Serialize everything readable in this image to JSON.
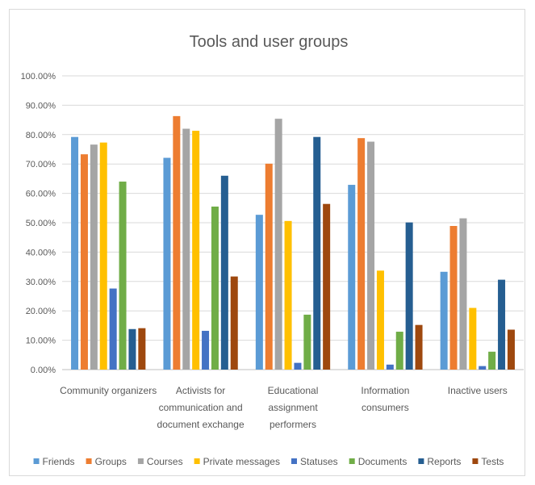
{
  "chart_data": {
    "type": "bar",
    "title": "Tools and user groups",
    "xlabel": "",
    "ylabel": "",
    "ylim": [
      0,
      100
    ],
    "y_ticks": [
      "0.00%",
      "10.00%",
      "20.00%",
      "30.00%",
      "40.00%",
      "50.00%",
      "60.00%",
      "70.00%",
      "80.00%",
      "90.00%",
      "100.00%"
    ],
    "grid": true,
    "legend_position": "bottom",
    "categories": [
      [
        "Community organizers"
      ],
      [
        "Activists for",
        "communication and",
        "document exchange"
      ],
      [
        "Educational",
        "assignment",
        "performers"
      ],
      [
        "Information",
        "consumers"
      ],
      [
        "Inactive users"
      ]
    ],
    "series": [
      {
        "name": "Friends",
        "color": "#5b9bd5",
        "values": [
          79.2,
          72.1,
          52.7,
          62.9,
          33.3
        ]
      },
      {
        "name": "Groups",
        "color": "#ed7d31",
        "values": [
          73.3,
          86.3,
          70.1,
          78.8,
          48.9
        ]
      },
      {
        "name": "Courses",
        "color": "#a5a5a5",
        "values": [
          76.6,
          82.0,
          85.4,
          77.6,
          51.5
        ]
      },
      {
        "name": "Private messages",
        "color": "#ffc000",
        "values": [
          77.3,
          81.3,
          50.6,
          33.7,
          21.0
        ]
      },
      {
        "name": "Statuses",
        "color": "#4472c4",
        "values": [
          27.6,
          13.2,
          2.3,
          1.7,
          1.2
        ]
      },
      {
        "name": "Documents",
        "color": "#70ad47",
        "values": [
          64.0,
          55.5,
          18.7,
          12.9,
          6.1
        ]
      },
      {
        "name": "Reports",
        "color": "#255e91",
        "values": [
          13.8,
          66.0,
          79.2,
          50.1,
          30.6
        ]
      },
      {
        "name": "Tests",
        "color": "#9e480e",
        "values": [
          14.1,
          31.7,
          56.4,
          15.2,
          13.6
        ]
      }
    ]
  }
}
